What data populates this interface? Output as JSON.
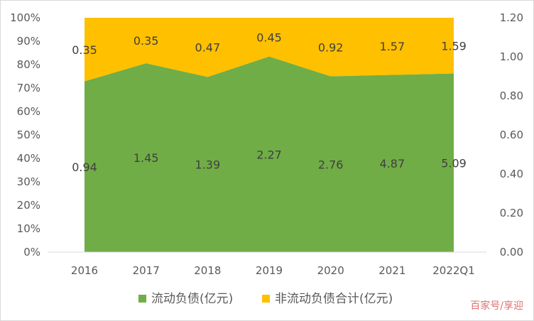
{
  "chart_data": {
    "type": "area",
    "stacking": "percent",
    "categories": [
      "2016",
      "2017",
      "2018",
      "2019",
      "2020",
      "2021",
      "2022Q1"
    ],
    "series": [
      {
        "name": "流动负债(亿元)",
        "values": [
          0.94,
          1.45,
          1.39,
          2.27,
          2.76,
          4.87,
          5.09
        ],
        "color": "#70ad47"
      },
      {
        "name": "非流动负债合计(亿元)",
        "values": [
          0.35,
          0.35,
          0.47,
          0.45,
          0.92,
          1.57,
          1.59
        ],
        "color": "#ffc000"
      }
    ],
    "y_left": {
      "ticks": [
        "0%",
        "10%",
        "20%",
        "30%",
        "40%",
        "50%",
        "60%",
        "70%",
        "80%",
        "90%",
        "100%"
      ],
      "range": [
        0,
        100
      ]
    },
    "y_right": {
      "ticks": [
        "0.00",
        "0.20",
        "0.40",
        "0.60",
        "0.80",
        "1.00",
        "1.20"
      ],
      "range": [
        0,
        1.2
      ]
    },
    "grid": false,
    "legend_position": "bottom"
  },
  "watermark": "百家号/享迎"
}
